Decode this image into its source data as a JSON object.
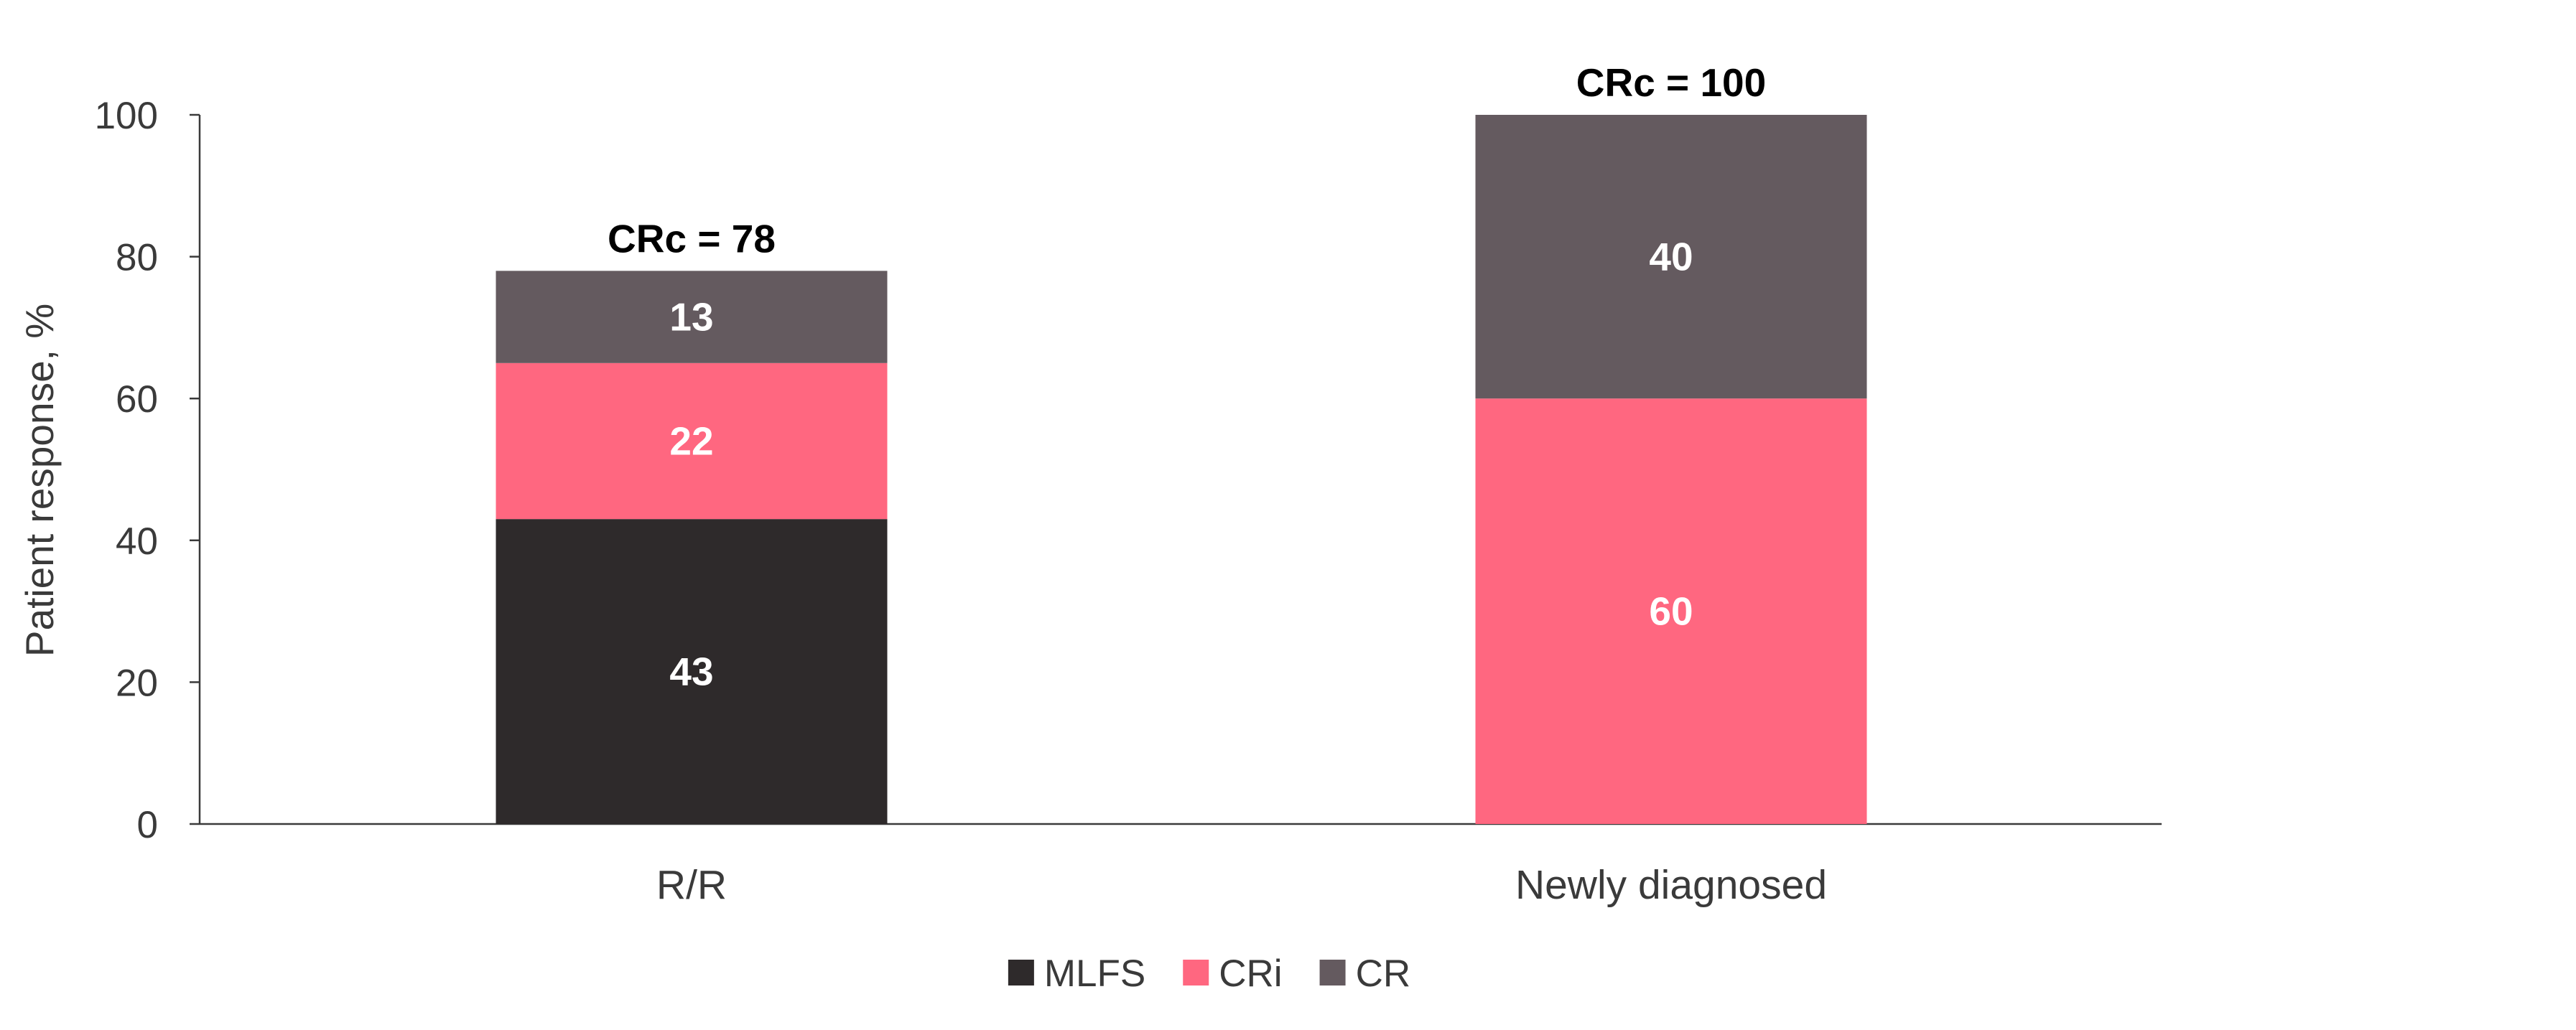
{
  "chart_data": {
    "type": "bar",
    "stacked": true,
    "categories": [
      "R/R",
      "Newly diagnosed"
    ],
    "series": [
      {
        "name": "MLFS",
        "color": "#2e2a2b",
        "values": [
          43,
          0
        ]
      },
      {
        "name": "CRi",
        "color": "#ff6780",
        "values": [
          22,
          60
        ]
      },
      {
        "name": "CR",
        "color": "#645a5f",
        "values": [
          13,
          40
        ]
      }
    ],
    "segment_labels": [
      [
        "43",
        "22",
        "13"
      ],
      [
        "",
        "60",
        "40"
      ]
    ],
    "totals": [
      {
        "text": "CRc = 78",
        "value": 78
      },
      {
        "text": "CRc = 100",
        "value": 100
      }
    ],
    "ylabel": "Patient response, %",
    "xlabel": "",
    "ylim": [
      0,
      100
    ],
    "yticks": [
      0,
      20,
      40,
      60,
      80,
      100
    ],
    "grid": false,
    "legend_position": "bottom-center"
  }
}
